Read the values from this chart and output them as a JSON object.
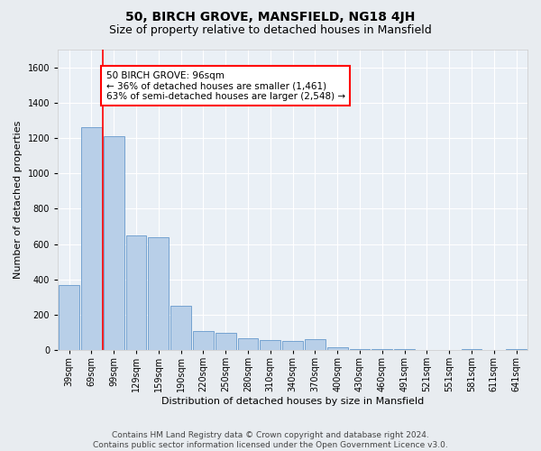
{
  "title": "50, BIRCH GROVE, MANSFIELD, NG18 4JH",
  "subtitle": "Size of property relative to detached houses in Mansfield",
  "xlabel": "Distribution of detached houses by size in Mansfield",
  "ylabel": "Number of detached properties",
  "categories": [
    "39sqm",
    "69sqm",
    "99sqm",
    "129sqm",
    "159sqm",
    "190sqm",
    "220sqm",
    "250sqm",
    "280sqm",
    "310sqm",
    "340sqm",
    "370sqm",
    "400sqm",
    "430sqm",
    "460sqm",
    "491sqm",
    "521sqm",
    "551sqm",
    "581sqm",
    "611sqm",
    "641sqm"
  ],
  "values": [
    370,
    1260,
    1210,
    650,
    640,
    250,
    110,
    100,
    65,
    55,
    50,
    60,
    15,
    5,
    5,
    5,
    0,
    0,
    5,
    0,
    5
  ],
  "bar_color": "#b8cfe8",
  "bar_edge_color": "#6699cc",
  "vline_color": "red",
  "vline_x_idx": 2,
  "annotation_text": "50 BIRCH GROVE: 96sqm\n← 36% of detached houses are smaller (1,461)\n63% of semi-detached houses are larger (2,548) →",
  "annotation_box_color": "white",
  "annotation_box_edge": "red",
  "ylim": [
    0,
    1700
  ],
  "yticks": [
    0,
    200,
    400,
    600,
    800,
    1000,
    1200,
    1400,
    1600
  ],
  "footer_line1": "Contains HM Land Registry data © Crown copyright and database right 2024.",
  "footer_line2": "Contains public sector information licensed under the Open Government Licence v3.0.",
  "bg_color": "#e8ecf0",
  "plot_bg_color": "#eaf0f6",
  "title_fontsize": 10,
  "subtitle_fontsize": 9,
  "axis_label_fontsize": 8,
  "tick_fontsize": 7,
  "annotation_fontsize": 7.5,
  "footer_fontsize": 6.5
}
